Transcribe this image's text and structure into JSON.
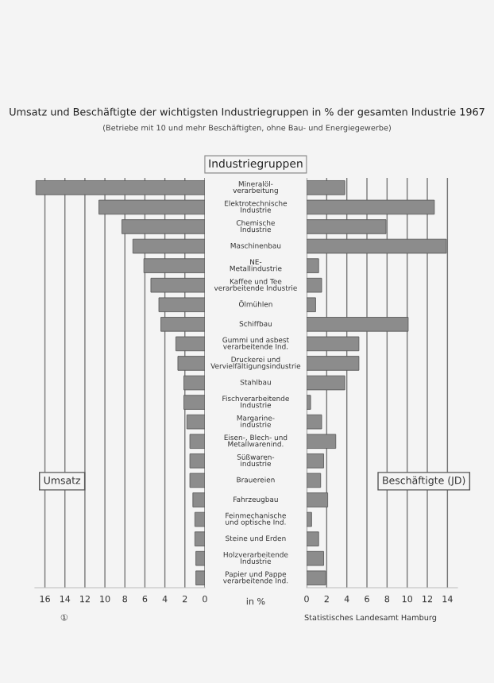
{
  "chart_data": [
    {
      "type": "bar",
      "orientation": "horizontal",
      "title": "Umsatz und Beschäftigte der wichtigsten Industriegruppen in % der gesamten Industrie 1967",
      "subtitle": "(Betriebe mit 10 und mehr Beschäftigten, ohne Bau- und Energiegewerbe)",
      "xlabel": "in %",
      "legend_title": "Industriegruppen",
      "categories": [
        "Mineralöl-\nverarbeitung",
        "Elektrotechnische\nIndustrie",
        "Chemische\nIndustrie",
        "Maschinenbau",
        "NE-\nMetallindustrie",
        "Kaffee und Tee\nverarbeitende Industrie",
        "Ölmühlen",
        "Schiffbau",
        "Gummi und asbest\nverarbeitende Ind.",
        "Druckerei und\nVervielfältigungsindustrie",
        "Stahlbau",
        "Fischverarbeitende\nIndustrie",
        "Margarine-\nindustrie",
        "Eisen-, Blech- und\nMetallwarenind.",
        "Süßwaren-\nindustrie",
        "Brauereien",
        "Fahrzeugbau",
        "Feinmechanische\nund optische Ind.",
        "Steine und Erden",
        "Holzverarbeitende\nIndustrie",
        "Papier und Pappe\nverarbeitende Ind."
      ],
      "series": [
        {
          "name": "Umsatz",
          "color": "#8c8c8c",
          "values": [
            16.9,
            10.6,
            8.3,
            7.2,
            6.1,
            5.4,
            4.6,
            4.4,
            2.9,
            2.7,
            2.1,
            2.1,
            1.8,
            1.5,
            1.5,
            1.5,
            1.2,
            1.0,
            1.0,
            0.9,
            0.9
          ]
        }
      ],
      "xlim": [
        17,
        0
      ],
      "xticks": [
        16,
        14,
        12,
        10,
        8,
        6,
        4,
        2,
        0
      ],
      "grid": "x",
      "legend": false,
      "annotations": [
        "①"
      ]
    },
    {
      "type": "bar",
      "orientation": "horizontal",
      "tick_labels": "x",
      "categories": [
        null,
        null,
        null,
        null,
        null,
        null,
        null,
        null,
        null,
        null,
        null,
        null,
        null,
        null,
        null,
        null,
        null,
        null,
        null,
        null,
        null
      ],
      "series": [
        {
          "name": "Beschäftigte (JD)",
          "color": "#8c8c8c",
          "values": [
            3.8,
            12.7,
            7.9,
            13.9,
            1.2,
            1.5,
            0.9,
            10.1,
            5.2,
            5.2,
            3.8,
            0.4,
            1.5,
            2.9,
            1.7,
            1.4,
            2.1,
            0.5,
            1.2,
            1.7,
            1.9
          ]
        }
      ],
      "xlim": [
        0,
        15
      ],
      "xticks": [
        0,
        2,
        4,
        6,
        8,
        10,
        12,
        14
      ],
      "grid": "x",
      "legend": false,
      "annotations": [
        "Statistisches Landesamt Hamburg"
      ]
    }
  ]
}
